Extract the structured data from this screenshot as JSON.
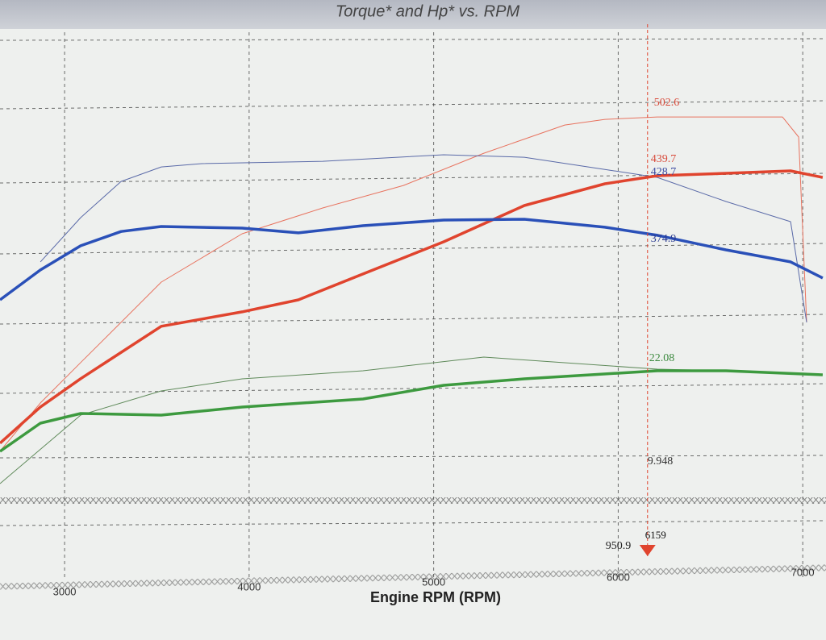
{
  "chart_data": {
    "type": "line",
    "title": "Torque* and Hp* vs. RPM",
    "x_label": "Engine RPM (RPM)",
    "xlim": [
      2650,
      7126
    ],
    "xticks": [
      3000,
      4000,
      5000,
      6000,
      7000
    ],
    "ylim": [
      20,
      594
    ],
    "y2lim": [
      10,
      43
    ],
    "series": [
      {
        "color": "#e8735f",
        "width": 1,
        "x": [
          2650,
          2869,
          3087,
          3306,
          3524,
          3962,
          4399,
          4836,
          5272,
          5710,
          5928,
          6212,
          6584,
          6890,
          6978,
          7021
        ],
        "values": [
          142,
          194,
          237.6,
          281,
          324.4,
          376.6,
          404.4,
          428.7,
          463.5,
          493.9,
          500,
          502.6,
          502.6,
          502.6,
          480.9,
          281
        ]
      },
      {
        "color": "#5a6aa8",
        "width": 1,
        "x": [
          2869,
          3087,
          3306,
          3524,
          3743,
          4399,
          5054,
          5491,
          5928,
          6212,
          6584,
          6934,
          7021
        ],
        "values": [
          346.2,
          394,
          433,
          448.7,
          452.2,
          454.8,
          461.8,
          459.1,
          446,
          437.4,
          411.4,
          389.6,
          281
        ]
      },
      {
        "color": "#e0442e",
        "width": 3.5,
        "x": [
          2650,
          2869,
          3087,
          3524,
          3962,
          4267,
          4617,
          5054,
          5491,
          5928,
          6212,
          6584,
          6934,
          7108
        ],
        "values": [
          150.6,
          189.7,
          220.2,
          276.7,
          292.3,
          305.3,
          333.2,
          367.9,
          407,
          430.5,
          439.2,
          441.8,
          444.4,
          437.4
        ]
      },
      {
        "color": "#2a50b8",
        "width": 3.5,
        "x": [
          2650,
          2869,
          3087,
          3306,
          3524,
          3962,
          4267,
          4617,
          5054,
          5491,
          5928,
          6212,
          6584,
          6934,
          7108
        ],
        "values": [
          305.3,
          337.5,
          363.6,
          379,
          384.4,
          382.7,
          377.5,
          385.3,
          391.4,
          392.2,
          383.6,
          374.9,
          359.2,
          346.2,
          328.8
        ]
      },
      {
        "color": "#5f8a5a",
        "width": 1,
        "axis": "y2",
        "x": [
          2650,
          3087,
          3524,
          3962,
          4617,
          5272,
          5710,
          6212,
          6584,
          7108
        ],
        "values": [
          15,
          19.25,
          20.75,
          21.5,
          22,
          22.85,
          22.5,
          22.1,
          22,
          21.75
        ]
      },
      {
        "color": "#3d9a3f",
        "width": 3.5,
        "axis": "y2",
        "x": [
          2650,
          2869,
          3087,
          3524,
          3962,
          4617,
          5054,
          5491,
          6212,
          6584,
          7108
        ],
        "values": [
          17,
          18.75,
          19.35,
          19.25,
          19.75,
          20.25,
          21.1,
          21.5,
          22,
          22,
          21.75
        ]
      }
    ],
    "cursor": {
      "x": 6159,
      "color": "#e0442e",
      "readouts": [
        {
          "value": 502.6,
          "color": "#d84a3a"
        },
        {
          "value": 439.7,
          "color": "#d84a3a"
        },
        {
          "value": 428.7,
          "color": "#3b4aa0"
        },
        {
          "value": 374.9,
          "color": "#2a3a90"
        },
        {
          "value": 22.08,
          "color": "#3d8a3f"
        },
        {
          "value": 9.948,
          "color": "#333333"
        },
        {
          "value": 950.9,
          "color": "#222222"
        }
      ]
    }
  }
}
